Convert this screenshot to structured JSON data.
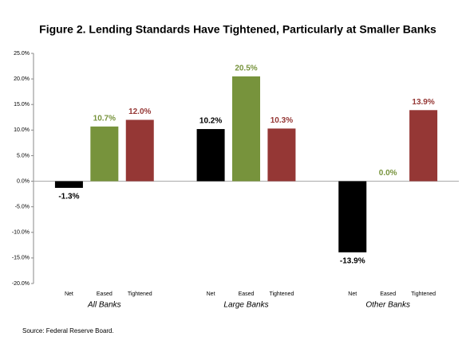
{
  "chart_data": {
    "type": "grouped-bar",
    "title": "Figure 2. Lending Standards Have Tightened, Particularly at Smaller Banks",
    "groups": [
      {
        "name": "All Banks",
        "categories": [
          "Net",
          "Eased",
          "Tightened"
        ],
        "values": [
          -1.3,
          10.7,
          12.0
        ],
        "value_labels": [
          "-1.3%",
          "10.7%",
          "12.0%"
        ]
      },
      {
        "name": "Large Banks",
        "categories": [
          "Net",
          "Eased",
          "Tightened"
        ],
        "values": [
          10.2,
          20.5,
          10.3
        ],
        "value_labels": [
          "10.2%",
          "20.5%",
          "10.3%"
        ]
      },
      {
        "name": "Other Banks",
        "categories": [
          "Net",
          "Eased",
          "Tightened"
        ],
        "values": [
          -13.9,
          0.0,
          13.9
        ],
        "value_labels": [
          "-13.9%",
          "0.0%",
          "13.9%"
        ]
      }
    ],
    "colors": [
      "#000000",
      "#77933c",
      "#953735"
    ],
    "ylim": [
      -20,
      25
    ],
    "yticks": [
      {
        "value": -20,
        "label": "-20.0%"
      },
      {
        "value": -15,
        "label": "-15.0%"
      },
      {
        "value": -10,
        "label": "-10.0%"
      },
      {
        "value": -5,
        "label": "-5.0%"
      },
      {
        "value": 0,
        "label": "0.0%"
      },
      {
        "value": 5,
        "label": "5.0%"
      },
      {
        "value": 10,
        "label": "10.0%"
      },
      {
        "value": 15,
        "label": "15.0%"
      },
      {
        "value": 20,
        "label": "20.0%"
      },
      {
        "value": 25,
        "label": "25.0%"
      }
    ],
    "grid": false,
    "source": "Source: Federal Reserve Board."
  }
}
